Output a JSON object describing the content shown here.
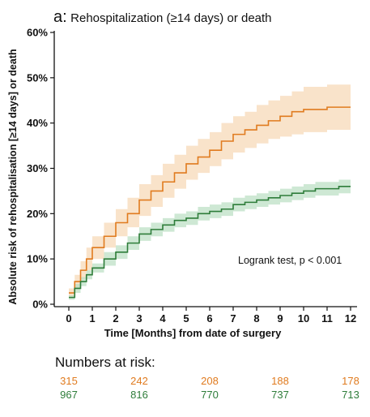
{
  "panel_letter": "a:",
  "title": "Rehospitalization (≥14 days) or death",
  "annotation": "Logrank test, p < 0.001",
  "risk_table": {
    "title": "Numbers at risk:",
    "months": [
      0,
      3,
      6,
      9,
      12
    ],
    "rows": [
      {
        "color": "#e07b1f",
        "values": [
          "315",
          "242",
          "208",
          "188",
          "178"
        ]
      },
      {
        "color": "#2e7d3a",
        "values": [
          "967",
          "816",
          "770",
          "737",
          "713"
        ]
      }
    ]
  },
  "chart_data": {
    "type": "line",
    "subtype": "step-with-confidence-band",
    "title": "Rehospitalization (≥14 days) or death",
    "xlabel": "Time [Months] from date of surgery",
    "ylabel": "Absolute risk of rehospitalisation [≥14 days] or death",
    "xlim": [
      0,
      12
    ],
    "ylim": [
      0,
      60
    ],
    "x_ticks": [
      "0",
      "1",
      "2",
      "3",
      "4",
      "5",
      "6",
      "7",
      "8",
      "9",
      "10",
      "11",
      "12"
    ],
    "y_ticks": [
      "0%",
      "10%",
      "20%",
      "30%",
      "40%",
      "50%",
      "60%"
    ],
    "grid": false,
    "series": [
      {
        "color": "#e07b1f",
        "band_color": "#f7d9b8",
        "x": [
          0,
          0.25,
          0.5,
          0.75,
          1,
          1.5,
          2,
          2.5,
          3,
          3.5,
          4,
          4.5,
          5,
          5.5,
          6,
          6.5,
          7,
          7.5,
          8,
          8.5,
          9,
          9.5,
          10,
          10.5,
          11,
          11.5,
          12
        ],
        "y": [
          2.5,
          5,
          7.5,
          10,
          12.5,
          15,
          18,
          20,
          23,
          25,
          27,
          29,
          31,
          32.5,
          34,
          36,
          37.5,
          38.5,
          39.5,
          40.5,
          41.5,
          42.5,
          43,
          43,
          43.5,
          43.5,
          43.5
        ],
        "lower": [
          1.5,
          3.5,
          5.5,
          7.5,
          10,
          12.5,
          15,
          17,
          19.5,
          21.5,
          23.5,
          25.5,
          27.5,
          29,
          30.5,
          32,
          33.5,
          34.5,
          35.5,
          36.5,
          37,
          37.5,
          38,
          38,
          38.5,
          38.5,
          38.5
        ],
        "upper": [
          3.5,
          6.5,
          9.5,
          12.5,
          15,
          18,
          21,
          23.5,
          26.5,
          28.5,
          31,
          33,
          35,
          36.5,
          38,
          40,
          41.5,
          42.5,
          44,
          45,
          46,
          47,
          48,
          48,
          48.5,
          48.5,
          48.5
        ]
      },
      {
        "color": "#2e7d3a",
        "band_color": "#bde0c5",
        "x": [
          0,
          0.25,
          0.5,
          0.75,
          1,
          1.5,
          2,
          2.5,
          3,
          3.5,
          4,
          4.5,
          5,
          5.5,
          6,
          6.5,
          7,
          7.5,
          8,
          8.5,
          9,
          9.5,
          10,
          10.5,
          11,
          11.5,
          12
        ],
        "y": [
          1.5,
          3.5,
          5,
          6.5,
          8,
          10,
          11.5,
          13.5,
          15.5,
          16.5,
          17.5,
          18.5,
          19,
          20,
          20.5,
          21,
          22,
          22.5,
          23,
          23.5,
          24,
          24.5,
          25,
          25.5,
          25.5,
          26,
          26
        ],
        "lower": [
          1,
          2.5,
          4,
          5.5,
          7,
          8.5,
          10,
          12,
          14,
          15,
          16,
          17,
          17.5,
          18.5,
          19,
          19.5,
          20.5,
          21,
          21.5,
          22,
          22.5,
          23,
          23.5,
          24,
          24,
          24.5,
          24.5
        ],
        "upper": [
          2,
          4.5,
          6,
          7.5,
          9,
          11.5,
          13,
          15,
          17,
          18,
          19,
          20,
          20.5,
          21.5,
          22,
          22.5,
          23.5,
          24,
          24.5,
          25,
          25.5,
          26,
          26.5,
          27,
          27,
          27.5,
          27.5
        ]
      }
    ]
  }
}
